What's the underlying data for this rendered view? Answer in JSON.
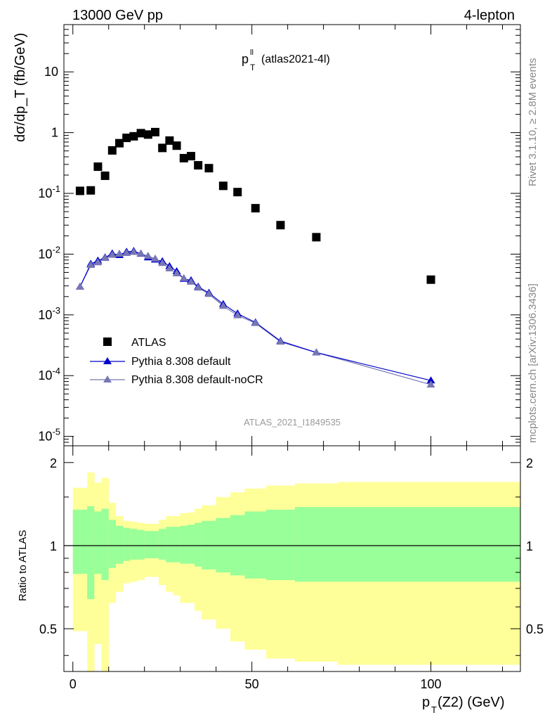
{
  "header": {
    "left": "13000 GeV pp",
    "right": "4-lepton"
  },
  "side_labels": {
    "rivet": "Rivet 3.1.10, ≥ 2.8M events",
    "mcplots": "mcplots.cern.ch [arXiv:1306.3436]"
  },
  "watermark": "ATLAS_2021_I1849535",
  "colors": {
    "atlas": "#000000",
    "pythia_default": "#0000cc",
    "pythia_nocr": "#7777b4",
    "band_stat": "#99ff99",
    "band_total": "#ffff99"
  },
  "chart_data": [
    {
      "type": "scatter",
      "title": "p_T^ll (atlas2021-4l)",
      "title_main": "p",
      "title_sup": "ll",
      "title_sub": "T",
      "title_rest": "(atlas2021-4l)",
      "ylabel": "dσ/dp_T (fb/GeV)",
      "xlim": [
        -2.5,
        125
      ],
      "ylim": [
        7e-06,
        60
      ],
      "yscale": "log",
      "yticks": [
        {
          "value": 1e-05,
          "label": "10^-5"
        },
        {
          "value": 0.0001,
          "label": "10^-4"
        },
        {
          "value": 0.001,
          "label": "10^-3"
        },
        {
          "value": 0.01,
          "label": "10^-2"
        },
        {
          "value": 0.1,
          "label": "10^-1"
        },
        {
          "value": 1,
          "label": "1"
        },
        {
          "value": 10,
          "label": "10"
        }
      ],
      "legend_position": "bottom-left",
      "series": [
        {
          "name": "ATLAS",
          "marker": "square",
          "x": [
            2,
            5,
            7,
            9,
            11,
            13,
            15,
            17,
            19,
            21,
            23,
            25,
            27,
            29,
            31,
            33,
            35,
            38,
            42,
            46,
            51,
            58,
            68,
            100
          ],
          "values": [
            0.11,
            0.112,
            0.275,
            0.195,
            0.51,
            0.67,
            0.82,
            0.87,
            0.98,
            0.93,
            1.02,
            0.56,
            0.74,
            0.61,
            0.38,
            0.41,
            0.29,
            0.26,
            0.133,
            0.105,
            0.057,
            0.03,
            0.019,
            0.0038
          ]
        },
        {
          "name": "Pythia 8.308 default",
          "marker": "triangle",
          "x": [
            2,
            5,
            7,
            9,
            11,
            13,
            15,
            17,
            19,
            21,
            23,
            25,
            27,
            29,
            31,
            33,
            35,
            38,
            42,
            46,
            51,
            58,
            68,
            100
          ],
          "values": [
            0.0029,
            0.0069,
            0.0078,
            0.0088,
            0.0102,
            0.0096,
            0.0109,
            0.0112,
            0.0101,
            0.0088,
            0.0081,
            0.0076,
            0.0063,
            0.0052,
            0.0039,
            0.0037,
            0.0029,
            0.0023,
            0.0015,
            0.00105,
            0.00075,
            0.00037,
            0.00024,
            8.3e-05
          ]
        },
        {
          "name": "Pythia 8.308 default-noCR",
          "marker": "triangle",
          "x": [
            2,
            5,
            7,
            9,
            11,
            13,
            15,
            17,
            19,
            21,
            23,
            25,
            27,
            29,
            31,
            33,
            35,
            38,
            42,
            46,
            51,
            58,
            68,
            100
          ],
          "values": [
            0.0029,
            0.0066,
            0.0073,
            0.0086,
            0.0097,
            0.0101,
            0.0104,
            0.0108,
            0.0102,
            0.0093,
            0.0084,
            0.0071,
            0.0058,
            0.0048,
            0.004,
            0.0035,
            0.0028,
            0.0022,
            0.0014,
            0.00098,
            0.00073,
            0.00036,
            0.00024,
            7.1e-05
          ]
        }
      ]
    },
    {
      "type": "area",
      "ylabel": "Ratio to ATLAS",
      "xlabel": "p_T(Z2) (GeV)",
      "xlabel_main": "p",
      "xlabel_sub": "T",
      "xlabel_rest": "(Z2) (GeV)",
      "xlim": [
        -2.5,
        125
      ],
      "ylim": [
        0.35,
        2.3
      ],
      "yscale": "log",
      "reference_line": 1,
      "xticks": [
        0,
        50,
        100
      ],
      "yticks": [
        {
          "value": 0.5,
          "label": "0.5"
        },
        {
          "value": 1,
          "label": "1"
        },
        {
          "value": 2,
          "label": "2"
        }
      ],
      "bands": {
        "bin_edges": [
          0,
          4,
          6,
          8,
          10,
          12,
          14,
          16,
          18,
          20,
          22,
          24,
          26,
          28,
          30,
          32,
          34,
          36,
          40,
          44,
          48,
          54,
          62,
          74,
          125
        ],
        "stat_lo": [
          0.79,
          0.64,
          0.79,
          0.75,
          0.83,
          0.86,
          0.88,
          0.89,
          0.89,
          0.9,
          0.9,
          0.89,
          0.87,
          0.87,
          0.86,
          0.86,
          0.84,
          0.82,
          0.8,
          0.78,
          0.76,
          0.75,
          0.74,
          0.74
        ],
        "stat_hi": [
          1.35,
          1.39,
          1.33,
          1.36,
          1.24,
          1.18,
          1.16,
          1.15,
          1.14,
          1.13,
          1.13,
          1.15,
          1.17,
          1.17,
          1.18,
          1.19,
          1.21,
          1.23,
          1.26,
          1.29,
          1.33,
          1.35,
          1.38,
          1.38
        ],
        "total_lo": [
          0.49,
          0.3,
          0.44,
          0.34,
          0.62,
          0.68,
          0.73,
          0.74,
          0.75,
          0.77,
          0.77,
          0.72,
          0.68,
          0.66,
          0.62,
          0.62,
          0.58,
          0.54,
          0.5,
          0.45,
          0.42,
          0.39,
          0.38,
          0.37
        ],
        "total_hi": [
          1.62,
          1.84,
          1.69,
          1.76,
          1.43,
          1.28,
          1.23,
          1.22,
          1.21,
          1.2,
          1.2,
          1.24,
          1.28,
          1.28,
          1.31,
          1.32,
          1.36,
          1.4,
          1.5,
          1.56,
          1.61,
          1.65,
          1.68,
          1.7
        ]
      }
    }
  ]
}
